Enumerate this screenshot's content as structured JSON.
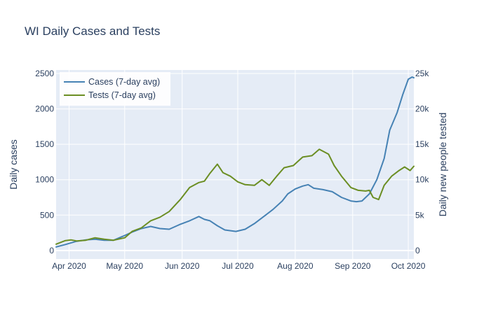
{
  "chart_data": {
    "type": "line",
    "title": "WI Daily Cases and Tests",
    "xlabel": "",
    "ylabel": "Daily cases",
    "y2label": "Daily new people tested",
    "xlim": [
      "2020-03-25",
      "2020-10-04"
    ],
    "ylim": [
      -120,
      2550
    ],
    "y2lim": [
      -1200,
      25500
    ],
    "grid": true,
    "legend_position": "top-left",
    "x_tick_labels": [
      "Apr 2020",
      "May 2020",
      "Jun 2020",
      "Jul 2020",
      "Aug 2020",
      "Sep 2020",
      "Oct 2020"
    ],
    "x_tick_dates": [
      "2020-04-01",
      "2020-05-01",
      "2020-06-01",
      "2020-07-01",
      "2020-08-01",
      "2020-09-01",
      "2020-10-01"
    ],
    "y_ticks": [
      0,
      500,
      1000,
      1500,
      2000,
      2500
    ],
    "y_tick_labels": [
      "0",
      "500",
      "1000",
      "1500",
      "2000",
      "2500"
    ],
    "y2_ticks": [
      0,
      5000,
      10000,
      15000,
      20000,
      25000
    ],
    "y2_tick_labels": [
      "0",
      "5k",
      "10k",
      "15k",
      "20k",
      "25k"
    ],
    "series": [
      {
        "name": "Cases (7-day avg)",
        "axis": "left",
        "color": "#4682b4",
        "points": [
          [
            "2020-03-25",
            50
          ],
          [
            "2020-03-30",
            85
          ],
          [
            "2020-04-05",
            130
          ],
          [
            "2020-04-10",
            150
          ],
          [
            "2020-04-15",
            160
          ],
          [
            "2020-04-20",
            145
          ],
          [
            "2020-04-25",
            145
          ],
          [
            "2020-04-30",
            200
          ],
          [
            "2020-05-05",
            260
          ],
          [
            "2020-05-10",
            310
          ],
          [
            "2020-05-15",
            340
          ],
          [
            "2020-05-20",
            310
          ],
          [
            "2020-05-25",
            300
          ],
          [
            "2020-05-31",
            370
          ],
          [
            "2020-06-05",
            420
          ],
          [
            "2020-06-10",
            480
          ],
          [
            "2020-06-13",
            440
          ],
          [
            "2020-06-16",
            420
          ],
          [
            "2020-06-20",
            350
          ],
          [
            "2020-06-24",
            290
          ],
          [
            "2020-06-30",
            270
          ],
          [
            "2020-07-05",
            300
          ],
          [
            "2020-07-10",
            380
          ],
          [
            "2020-07-15",
            480
          ],
          [
            "2020-07-20",
            580
          ],
          [
            "2020-07-25",
            700
          ],
          [
            "2020-07-28",
            800
          ],
          [
            "2020-08-01",
            870
          ],
          [
            "2020-08-05",
            910
          ],
          [
            "2020-08-08",
            930
          ],
          [
            "2020-08-11",
            880
          ],
          [
            "2020-08-16",
            860
          ],
          [
            "2020-08-21",
            830
          ],
          [
            "2020-08-26",
            750
          ],
          [
            "2020-08-31",
            700
          ],
          [
            "2020-09-03",
            690
          ],
          [
            "2020-09-06",
            700
          ],
          [
            "2020-09-10",
            800
          ],
          [
            "2020-09-14",
            1000
          ],
          [
            "2020-09-18",
            1300
          ],
          [
            "2020-09-21",
            1700
          ],
          [
            "2020-09-25",
            1950
          ],
          [
            "2020-09-28",
            2200
          ],
          [
            "2020-10-01",
            2420
          ],
          [
            "2020-10-03",
            2450
          ],
          [
            "2020-10-04",
            2440
          ]
        ]
      },
      {
        "name": "Tests (7-day avg)",
        "axis": "right",
        "color": "#6b8e23",
        "points": [
          [
            "2020-03-25",
            900
          ],
          [
            "2020-03-30",
            1400
          ],
          [
            "2020-04-02",
            1500
          ],
          [
            "2020-04-05",
            1350
          ],
          [
            "2020-04-10",
            1450
          ],
          [
            "2020-04-15",
            1800
          ],
          [
            "2020-04-20",
            1600
          ],
          [
            "2020-04-25",
            1450
          ],
          [
            "2020-05-01",
            1800
          ],
          [
            "2020-05-05",
            2700
          ],
          [
            "2020-05-10",
            3200
          ],
          [
            "2020-05-15",
            4200
          ],
          [
            "2020-05-20",
            4700
          ],
          [
            "2020-05-25",
            5500
          ],
          [
            "2020-05-31",
            7200
          ],
          [
            "2020-06-05",
            8900
          ],
          [
            "2020-06-10",
            9600
          ],
          [
            "2020-06-13",
            9800
          ],
          [
            "2020-06-16",
            10900
          ],
          [
            "2020-06-20",
            12200
          ],
          [
            "2020-06-23",
            11000
          ],
          [
            "2020-06-27",
            10500
          ],
          [
            "2020-07-01",
            9700
          ],
          [
            "2020-07-05",
            9300
          ],
          [
            "2020-07-10",
            9200
          ],
          [
            "2020-07-14",
            10000
          ],
          [
            "2020-07-18",
            9200
          ],
          [
            "2020-07-22",
            10500
          ],
          [
            "2020-07-26",
            11700
          ],
          [
            "2020-07-31",
            12000
          ],
          [
            "2020-08-05",
            13200
          ],
          [
            "2020-08-10",
            13400
          ],
          [
            "2020-08-14",
            14300
          ],
          [
            "2020-08-19",
            13600
          ],
          [
            "2020-08-22",
            12000
          ],
          [
            "2020-08-26",
            10500
          ],
          [
            "2020-08-31",
            8900
          ],
          [
            "2020-09-04",
            8500
          ],
          [
            "2020-09-08",
            8400
          ],
          [
            "2020-09-10",
            8500
          ],
          [
            "2020-09-12",
            7500
          ],
          [
            "2020-09-15",
            7200
          ],
          [
            "2020-09-18",
            9200
          ],
          [
            "2020-09-22",
            10500
          ],
          [
            "2020-09-26",
            11300
          ],
          [
            "2020-09-29",
            11800
          ],
          [
            "2020-10-02",
            11300
          ],
          [
            "2020-10-04",
            11900
          ]
        ]
      }
    ]
  }
}
